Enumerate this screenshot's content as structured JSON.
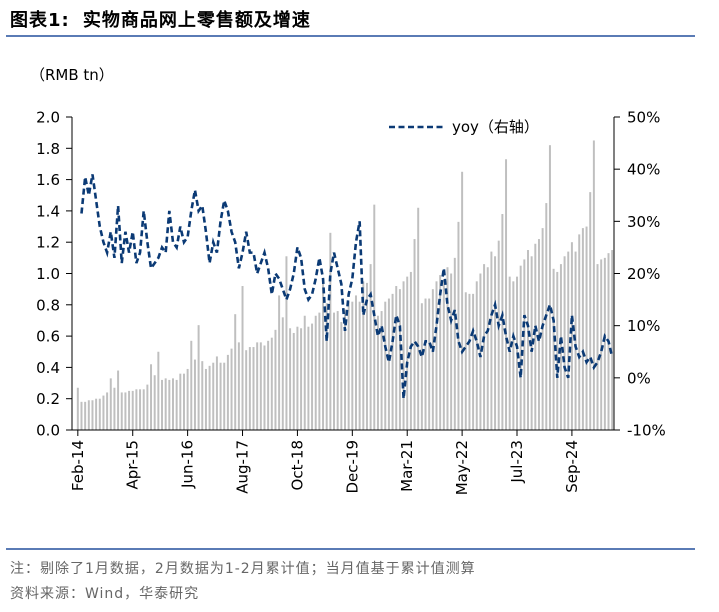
{
  "header": {
    "figure_label": "图表1:",
    "title": "实物商品网上零售额及增速"
  },
  "footer": {
    "note": "注：剔除了1月数据，2月数据为1-2月累计值；当月值基于累计值测算",
    "source": "资料来源：Wind，华泰研究"
  },
  "colors": {
    "bars": "#bfbfbf",
    "line": "#0b3a75",
    "rule": "#5a7bb5"
  },
  "chart_data": {
    "type": "bar+line",
    "unit_label": "（RMB tn）",
    "legend": {
      "label": "yoy（右轴）",
      "position": "top-right"
    },
    "grid": false,
    "x_tick_labels": [
      "Feb-14",
      "Apr-15",
      "Jun-16",
      "Aug-17",
      "Oct-18",
      "Dec-19",
      "Mar-21",
      "May-22",
      "Jul-23",
      "Sep-24"
    ],
    "y_left": {
      "ticks": [
        "0.0",
        "0.2",
        "0.4",
        "0.6",
        "0.8",
        "1.0",
        "1.2",
        "1.4",
        "1.6",
        "1.8",
        "2.0"
      ],
      "range": [
        0,
        2.0
      ]
    },
    "y_right": {
      "ticks": [
        "-10%",
        "0%",
        "10%",
        "20%",
        "30%",
        "40%",
        "50%"
      ],
      "range": [
        -10,
        50
      ]
    },
    "series": [
      {
        "name": "实物商品网上零售额",
        "kind": "bar",
        "axis": "left",
        "values": [
          0.27,
          0.18,
          0.18,
          0.19,
          0.19,
          0.2,
          0.2,
          0.22,
          0.24,
          0.33,
          0.27,
          0.38,
          0.24,
          0.24,
          0.25,
          0.25,
          0.26,
          0.26,
          0.26,
          0.29,
          0.42,
          0.35,
          0.5,
          0.32,
          0.33,
          0.32,
          0.33,
          0.32,
          0.36,
          0.36,
          0.39,
          0.57,
          0.45,
          0.67,
          0.44,
          0.39,
          0.41,
          0.43,
          0.47,
          0.43,
          0.43,
          0.48,
          0.52,
          0.74,
          0.56,
          0.92,
          0.51,
          0.53,
          0.53,
          0.56,
          0.56,
          0.54,
          0.57,
          0.59,
          0.64,
          0.86,
          0.72,
          1.11,
          0.65,
          0.62,
          0.66,
          0.65,
          0.73,
          0.66,
          0.68,
          0.73,
          0.75,
          0.97,
          0.81,
          1.26,
          0.75,
          0.76,
          0.69,
          0.77,
          0.82,
          0.82,
          0.86,
          0.82,
          0.95,
          0.94,
          1.06,
          1.44,
          0.73,
          0.76,
          0.82,
          0.84,
          0.87,
          0.92,
          0.9,
          0.95,
          0.98,
          1.01,
          1.22,
          1.42,
          0.81,
          0.84,
          0.84,
          0.9,
          0.95,
          0.99,
          0.96,
          1.04,
          1.0,
          1.1,
          1.33,
          1.65,
          0.88,
          0.87,
          0.87,
          0.95,
          1.0,
          1.06,
          1.04,
          1.14,
          1.11,
          1.21,
          1.38,
          1.73,
          0.98,
          0.95,
          0.98,
          1.05,
          1.09,
          1.15,
          1.11,
          1.19,
          1.22,
          1.29,
          1.45,
          1.82,
          1.03,
          1.01,
          1.06,
          1.11,
          1.14,
          1.2,
          1.14,
          1.25,
          1.29,
          1.3,
          1.52,
          1.85,
          1.06,
          1.09,
          1.1,
          1.13,
          1.15
        ]
      },
      {
        "name": "yoy（右轴）",
        "kind": "line",
        "axis": "right",
        "values": [
          31.5,
          38.5,
          35,
          39,
          34,
          29,
          26,
          24,
          28,
          23,
          33,
          22,
          28,
          24,
          28,
          22,
          24,
          32,
          26,
          21,
          22,
          23,
          25,
          24,
          32,
          26,
          25,
          29,
          26,
          27,
          32,
          36,
          32,
          33,
          28,
          22,
          26,
          24,
          30,
          34,
          32,
          28,
          26,
          21,
          24,
          28,
          24,
          24,
          20,
          22,
          24,
          21,
          16,
          20,
          19,
          17,
          15,
          17,
          20,
          25,
          23,
          17,
          15,
          16,
          19,
          23,
          19,
          7,
          20,
          24,
          21,
          18,
          9,
          16,
          19,
          26,
          30,
          12,
          15,
          16,
          12,
          8,
          10,
          6,
          3,
          7,
          12,
          10,
          -4,
          3,
          6,
          7,
          6,
          4,
          7,
          7,
          5,
          10,
          16,
          21,
          14,
          11,
          13,
          7,
          5,
          6,
          7,
          9,
          7,
          4,
          8,
          9,
          12,
          14,
          10,
          12,
          8,
          5,
          8,
          6,
          0,
          12,
          10,
          5,
          10,
          7,
          10,
          12,
          14,
          11,
          0,
          8,
          2,
          0,
          12,
          6,
          4,
          5,
          3,
          4,
          2,
          3,
          5,
          8,
          7,
          4
        ]
      }
    ]
  }
}
